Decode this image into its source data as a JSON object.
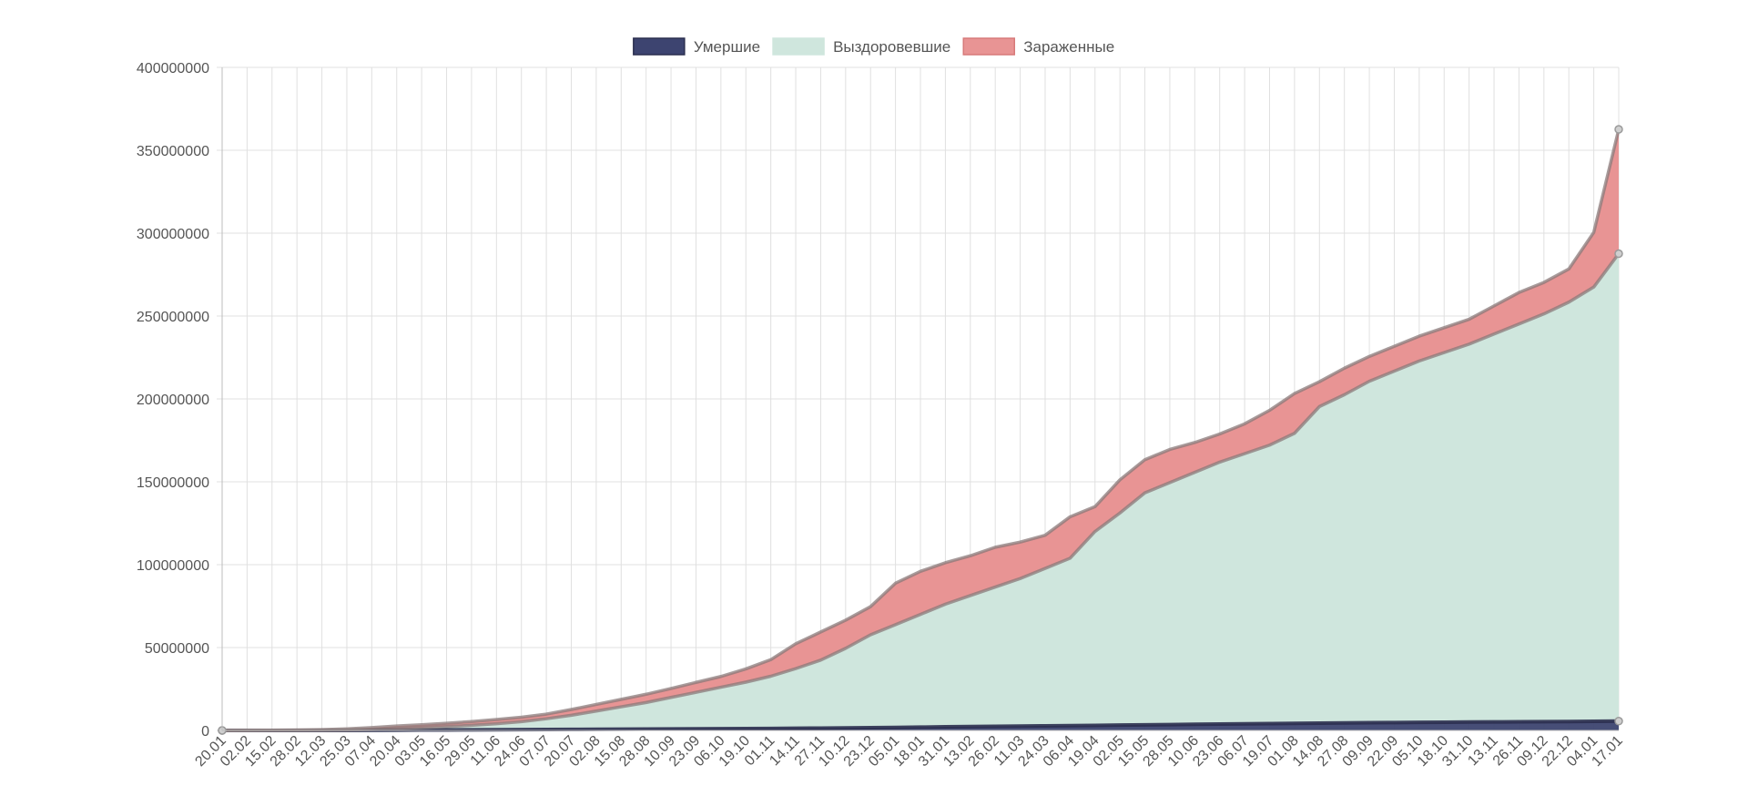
{
  "chart_data": {
    "type": "area",
    "stacked": true,
    "legend": {
      "placement": "top-center"
    },
    "grid": true,
    "ylim": [
      0,
      400000000
    ],
    "yticks": [
      "0",
      "50000000",
      "100000000",
      "150000000",
      "200000000",
      "250000000",
      "300000000",
      "350000000",
      "400000000"
    ],
    "categories": [
      "20.01",
      "02.02",
      "15.02",
      "28.02",
      "12.03",
      "25.03",
      "07.04",
      "20.04",
      "03.05",
      "16.05",
      "29.05",
      "11.06",
      "24.06",
      "07.07",
      "20.07",
      "02.08",
      "15.08",
      "28.08",
      "10.09",
      "23.09",
      "06.10",
      "19.10",
      "01.11",
      "14.11",
      "27.11",
      "10.12",
      "23.12",
      "05.01",
      "18.01",
      "31.01",
      "13.02",
      "26.02",
      "11.03",
      "24.03",
      "06.04",
      "19.04",
      "02.05",
      "15.05",
      "28.05",
      "10.06",
      "23.06",
      "06.07",
      "19.07",
      "01.08",
      "14.08",
      "27.08",
      "09.09",
      "22.09",
      "05.10",
      "18.10",
      "31.10",
      "13.11",
      "26.11",
      "09.12",
      "22.12",
      "04.01",
      "17.01"
    ],
    "series": [
      {
        "name": "Умершие",
        "color": "#3d4470",
        "values": [
          0,
          0,
          0,
          0,
          5000,
          30000,
          100000,
          170000,
          250000,
          310000,
          370000,
          420000,
          480000,
          540000,
          620000,
          690000,
          760000,
          830000,
          910000,
          980000,
          1050000,
          1120000,
          1200000,
          1290000,
          1400000,
          1530000,
          1680000,
          1820000,
          1980000,
          2180000,
          2360000,
          2500000,
          2630000,
          2750000,
          2880000,
          3000000,
          3200000,
          3350000,
          3520000,
          3700000,
          3860000,
          3980000,
          4120000,
          4260000,
          4400000,
          4550000,
          4650000,
          4760000,
          4860000,
          4960000,
          5050000,
          5120000,
          5200000,
          5280000,
          5380000,
          5500000,
          5620000
        ]
      },
      {
        "name": "Выздоровевшие",
        "color": "#cfe6dd",
        "values": [
          0,
          20000,
          40000,
          60000,
          80000,
          200000,
          450000,
          900000,
          1400000,
          2000000,
          2700000,
          3600000,
          4800000,
          6500000,
          8500000,
          11000000,
          13500000,
          16000000,
          19000000,
          22000000,
          25000000,
          28000000,
          31500000,
          36000000,
          41000000,
          48000000,
          56000000,
          62000000,
          68000000,
          74000000,
          79000000,
          84000000,
          89000000,
          95000000,
          101000000,
          117000000,
          128000000,
          140000000,
          146000000,
          152000000,
          158000000,
          163000000,
          168000000,
          175000000,
          191000000,
          198000000,
          206000000,
          212000000,
          218000000,
          223000000,
          228000000,
          234000000,
          240000000,
          246000000,
          253000000,
          262000000,
          282000000
        ]
      },
      {
        "name": "Зараженные",
        "color": "#e89494",
        "values": [
          0,
          60000,
          120000,
          200000,
          400000,
          700000,
          1200000,
          1600000,
          1800000,
          2000000,
          2300000,
          2600000,
          2700000,
          2800000,
          3500000,
          4000000,
          4500000,
          5000000,
          5400000,
          6000000,
          6500000,
          8000000,
          10000000,
          15000000,
          17000000,
          17000000,
          17000000,
          25000000,
          26000000,
          25000000,
          24000000,
          24000000,
          22000000,
          20000000,
          25000000,
          15000000,
          20000000,
          20000000,
          20000000,
          18000000,
          17000000,
          18000000,
          21000000,
          24000000,
          15000000,
          16000000,
          15000000,
          15000000,
          15000000,
          15000000,
          15000000,
          17000000,
          19000000,
          19000000,
          20000000,
          33000000,
          75000000
        ]
      }
    ]
  }
}
